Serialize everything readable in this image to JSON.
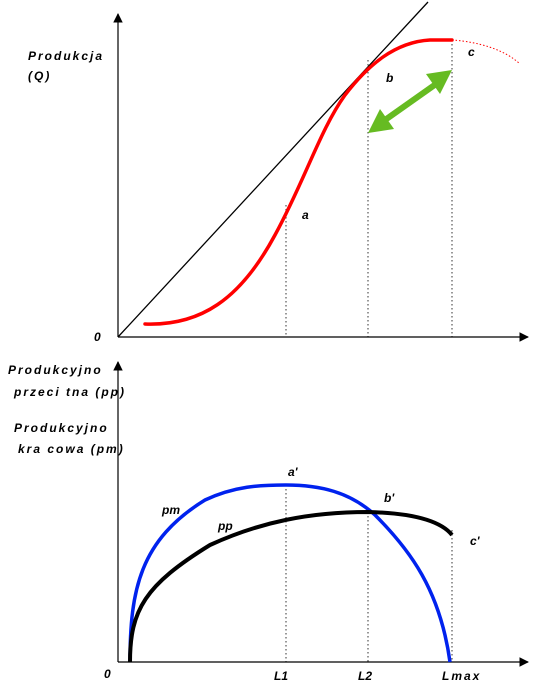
{
  "top_panel": {
    "y_axis_label_line1": "Produkcja",
    "y_axis_label_line2": "(Q)",
    "origin": "0",
    "point_a": "a",
    "point_b": "b",
    "point_c": "c"
  },
  "bottom_panel": {
    "y_axis_label_pp_line1": "Produkcyjno",
    "y_axis_label_pp_line2": "przeci tna (pp)",
    "y_axis_label_pm_line1": "Produkcyjno",
    "y_axis_label_pm_line2": "kra cowa (pm)",
    "origin": "0",
    "curve_pm_label": "pm",
    "curve_pp_label": "pp",
    "point_a_prime": "a'",
    "point_b_prime": "b'",
    "point_c_prime": "c'",
    "x_tick_L1": "L1",
    "x_tick_L2": "L2",
    "x_tick_Lmax": "Lmax"
  },
  "colors": {
    "total_product_curve": "#ff0000",
    "marginal_product_curve": "#0022ee",
    "average_product_curve": "#000000",
    "arrow": "#66bb22"
  }
}
